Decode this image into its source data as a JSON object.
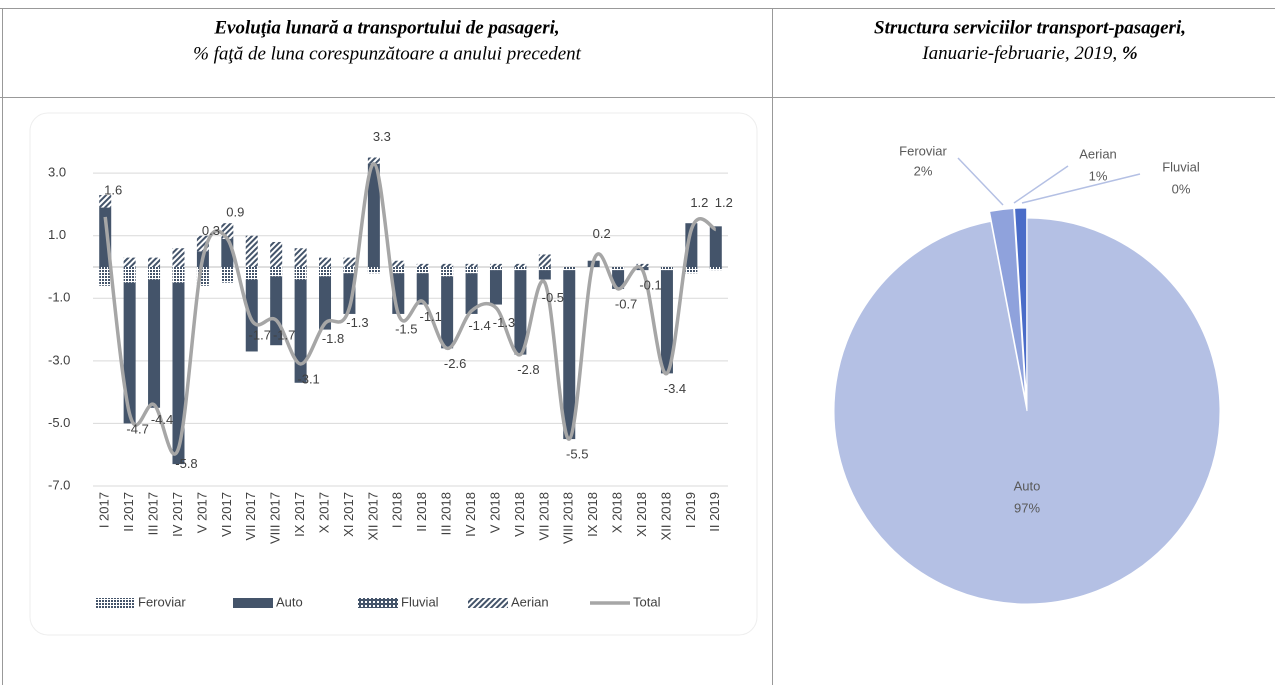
{
  "chart_data": [
    {
      "type": "bar",
      "stacked": true,
      "title": "Evoluţia lunară a transportului de pasageri,",
      "subtitle": "% faţă de luna corespunzătoare a anului precedent",
      "categories": [
        "I 2017",
        "II 2017",
        "III 2017",
        "IV 2017",
        "V 2017",
        "VI 2017",
        "VII 2017",
        "VIII 2017",
        "IX 2017",
        "X 2017",
        "XI 2017",
        "XII 2017",
        "I 2018",
        "II 2018",
        "III 2018",
        "IV 2018",
        "V 2018",
        "VI 2018",
        "VII 2018",
        "VIII 2018",
        "IX 2018",
        "X 2018",
        "XI 2018",
        "XII 2018",
        "I 2019",
        "II 2019"
      ],
      "series": [
        {
          "name": "Feroviar",
          "color": "#44546a",
          "pattern": "dots",
          "values": [
            -0.6,
            -0.5,
            -0.4,
            -0.5,
            -0.6,
            -0.5,
            -0.4,
            -0.3,
            -0.4,
            -0.3,
            -0.2,
            -0.2,
            -0.2,
            -0.2,
            -0.3,
            -0.2,
            -0.1,
            -0.1,
            -0.1,
            -0.1,
            0,
            -0.1,
            0,
            -0.1,
            -0.2,
            -0.1
          ]
        },
        {
          "name": "Auto",
          "color": "#44546a",
          "values": [
            1.9,
            -4.5,
            -4.1,
            -5.8,
            0.5,
            0.9,
            -2.3,
            -2.2,
            -3.3,
            -1.7,
            -1.3,
            3.3,
            -1.3,
            -1.0,
            -2.3,
            -1.3,
            -1.1,
            -2.7,
            -0.3,
            -5.4,
            0.2,
            -0.6,
            -0.1,
            -3.3,
            1.4,
            1.3
          ]
        },
        {
          "name": "Fluvial",
          "color": "#44546a",
          "pattern": "grid",
          "values": [
            0,
            0,
            0,
            0,
            0,
            0,
            0,
            0,
            0,
            0,
            0,
            0,
            0,
            0,
            0,
            0,
            0,
            0,
            0,
            0,
            0,
            0,
            0,
            0,
            0,
            0
          ]
        },
        {
          "name": "Aerian",
          "color": "#44546a",
          "pattern": "diag",
          "values": [
            0.4,
            0.3,
            0.3,
            0.6,
            0.5,
            0.5,
            1.0,
            0.8,
            0.6,
            0.3,
            0.3,
            0.2,
            0.2,
            0.1,
            0.1,
            0.1,
            0.1,
            0.1,
            0.4,
            0,
            0,
            0,
            0.1,
            0,
            0,
            0
          ]
        },
        {
          "name": "Total",
          "color": "#a6a6a6",
          "type": "line",
          "values": [
            1.6,
            -4.7,
            -4.4,
            -5.8,
            0.3,
            0.9,
            -1.7,
            -1.7,
            -3.1,
            -1.8,
            -1.3,
            3.3,
            -1.5,
            -1.1,
            -2.6,
            -1.4,
            -1.3,
            -2.8,
            -0.5,
            -5.5,
            0.2,
            -0.7,
            -0.1,
            -3.4,
            1.2,
            1.2
          ]
        }
      ],
      "ylim": [
        -7,
        3.5
      ],
      "yticks": [
        {
          "value": -7,
          "label": "-7.0"
        },
        {
          "value": -5,
          "label": "-5.0"
        },
        {
          "value": -3,
          "label": "-3.0"
        },
        {
          "value": -1,
          "label": "-1.0"
        },
        {
          "value": 1,
          "label": "1.0"
        },
        {
          "value": 3,
          "label": "3.0"
        }
      ],
      "grid": true,
      "legend": "bottom"
    },
    {
      "type": "pie",
      "title": "Structura serviciilor transport-pasageri,",
      "subtitle": "Ianuarie-februarie, 2019,",
      "unit": "%",
      "categories": [
        "Auto",
        "Feroviar",
        "Aerian",
        "Fluvial"
      ],
      "values": [
        97,
        2,
        1,
        0
      ],
      "value_labels": [
        "97%",
        "2%",
        "1%",
        "0%"
      ],
      "colors": [
        "#b4c0e4",
        "#8fa2dc",
        "#4a6cc8",
        "#2f4fa0"
      ]
    }
  ]
}
